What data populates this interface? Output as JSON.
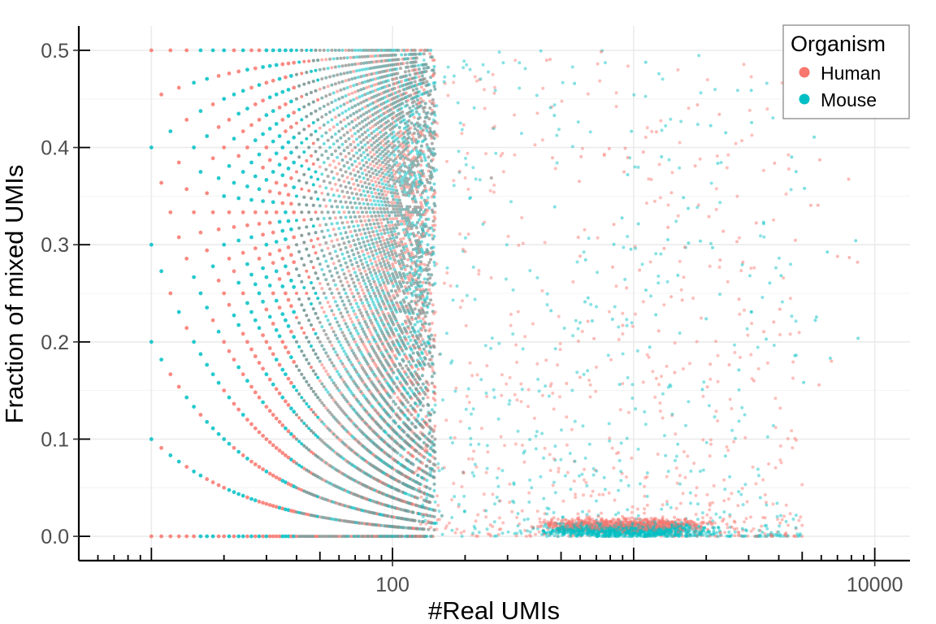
{
  "chart_data": {
    "type": "scatter",
    "xlabel": "#Real UMIs",
    "ylabel": "Fraction of mixed UMIs",
    "xscale": "log",
    "xlim": [
      5,
      14000
    ],
    "ylim": [
      -0.025,
      0.525
    ],
    "x_ticks": [
      100,
      10000
    ],
    "x_tick_labels": [
      "100",
      "10000"
    ],
    "y_ticks": [
      0.0,
      0.1,
      0.2,
      0.3,
      0.4,
      0.5
    ],
    "y_tick_labels": [
      "0.0",
      "0.1",
      "0.2",
      "0.3",
      "0.4",
      "0.5"
    ],
    "grid": true,
    "legend": {
      "title": "Organism",
      "position": "top-right",
      "entries": [
        {
          "name": "Human",
          "color": "#F8766D"
        },
        {
          "name": "Mouse",
          "color": "#00BFC4"
        }
      ]
    },
    "series": [
      {
        "name": "Human",
        "color": "#F8766D",
        "description": "Discrete k/n fractions for small n (10-150 UMIs) forming curved bands; scattered points 150-4000 UMIs at fractions 0-0.5; dense cluster near fraction 0.01 at 500-3000 UMIs",
        "points": [
          [
            10,
            0.0
          ],
          [
            10,
            0.1
          ],
          [
            10,
            0.2
          ],
          [
            10,
            0.3
          ],
          [
            10,
            0.4
          ],
          [
            10,
            0.5
          ],
          [
            20,
            0.05
          ],
          [
            20,
            0.25
          ],
          [
            20,
            0.45
          ],
          [
            30,
            0.1
          ],
          [
            30,
            0.3
          ],
          [
            30,
            0.5
          ],
          [
            40,
            0.2
          ],
          [
            40,
            0.35
          ],
          [
            50,
            0.1
          ],
          [
            50,
            0.3
          ],
          [
            50,
            0.42
          ],
          [
            60,
            0.2
          ],
          [
            70,
            0.35
          ],
          [
            80,
            0.4
          ],
          [
            90,
            0.45
          ],
          [
            100,
            0.3
          ],
          [
            120,
            0.45
          ],
          [
            150,
            0.25
          ],
          [
            200,
            0.15
          ],
          [
            300,
            0.1
          ],
          [
            500,
            0.05
          ],
          [
            700,
            0.46
          ],
          [
            1000,
            0.02
          ],
          [
            1500,
            0.01
          ],
          [
            2000,
            0.01
          ],
          [
            3000,
            0.015
          ],
          [
            3500,
            0.49
          ]
        ]
      },
      {
        "name": "Mouse",
        "color": "#00BFC4",
        "description": "Same discrete band structure for small n; scattered points at higher UMIs; dense cluster near fraction 0.005-0.01 at 1000-4000 UMIs",
        "points": [
          [
            10,
            0.0
          ],
          [
            10,
            0.1
          ],
          [
            10,
            0.2
          ],
          [
            10,
            0.3
          ],
          [
            10,
            0.4
          ],
          [
            10,
            0.5
          ],
          [
            20,
            0.05
          ],
          [
            20,
            0.15
          ],
          [
            20,
            0.35
          ],
          [
            30,
            0.0
          ],
          [
            30,
            0.2
          ],
          [
            30,
            0.4
          ],
          [
            40,
            0.1
          ],
          [
            40,
            0.25
          ],
          [
            60,
            0.15
          ],
          [
            80,
            0.3
          ],
          [
            100,
            0.5
          ],
          [
            130,
            0.45
          ],
          [
            200,
            0.2
          ],
          [
            300,
            0.05
          ],
          [
            600,
            0.3
          ],
          [
            900,
            0.35
          ],
          [
            1500,
            0.25
          ],
          [
            2000,
            0.01
          ],
          [
            2500,
            0.005
          ],
          [
            3000,
            0.01
          ],
          [
            4000,
            0.005
          ],
          [
            3000,
            0.44
          ],
          [
            5000,
            0.22
          ]
        ]
      }
    ]
  }
}
